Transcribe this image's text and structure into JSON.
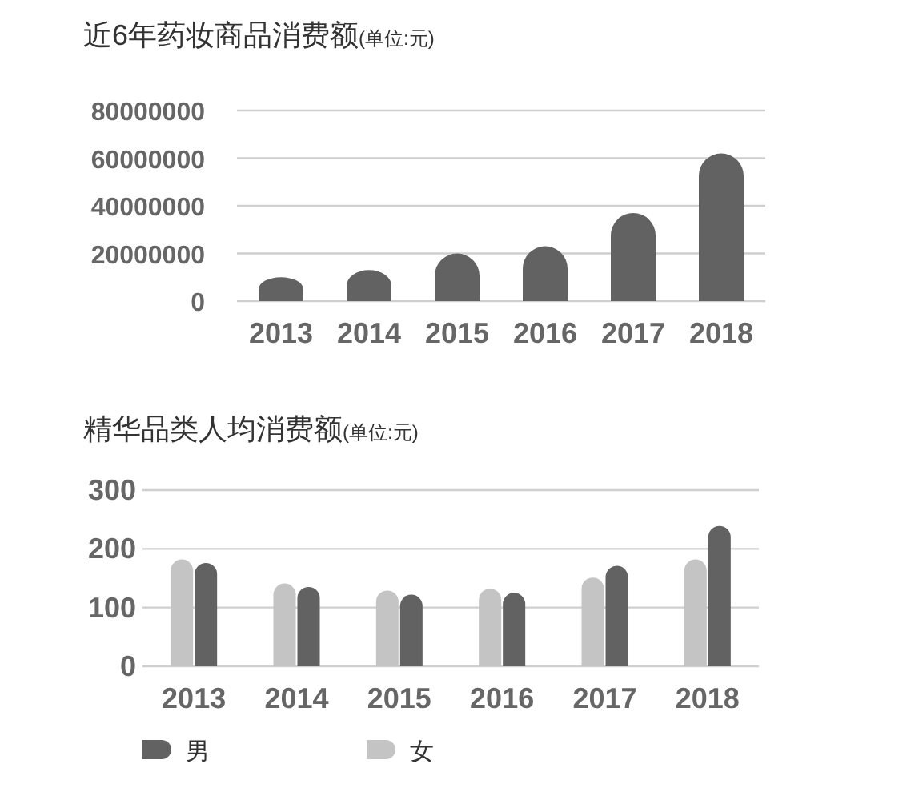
{
  "chart_data": [
    {
      "type": "bar",
      "title": "近6年药妆商品消费额",
      "subtitle": "(单位:元)",
      "categories": [
        "2013",
        "2014",
        "2015",
        "2016",
        "2017",
        "2018"
      ],
      "series": [
        {
          "color": "#626262",
          "values": [
            10000000,
            13000000,
            20000000,
            23000000,
            37000000,
            62000000
          ]
        }
      ],
      "ylim": [
        0,
        80000000
      ],
      "yticks": [
        0,
        20000000,
        40000000,
        60000000,
        80000000
      ],
      "grid": "y",
      "legend": false
    },
    {
      "type": "bar",
      "title": "精华品类人均消费额",
      "subtitle": "(单位:元)",
      "categories": [
        "2013",
        "2014",
        "2015",
        "2016",
        "2017",
        "2018"
      ],
      "series": [
        {
          "name": "女",
          "color": "#c4c4c4",
          "values": [
            182,
            141,
            129,
            132,
            151,
            182
          ]
        },
        {
          "name": "男",
          "color": "#626262",
          "values": [
            176,
            135,
            122,
            125,
            171,
            239
          ]
        }
      ],
      "ylim": [
        0,
        300
      ],
      "yticks": [
        0,
        100,
        200,
        300
      ],
      "grid": "y",
      "legend": "bottom"
    }
  ]
}
